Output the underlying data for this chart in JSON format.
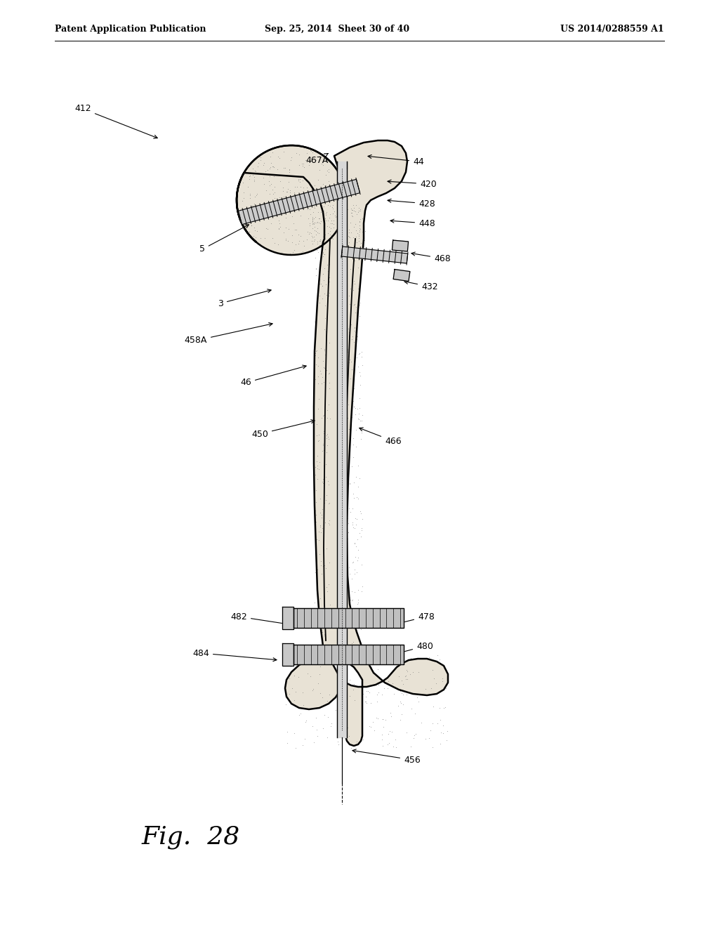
{
  "header_left": "Patent Application Publication",
  "header_center": "Sep. 25, 2014  Sheet 30 of 40",
  "header_right": "US 2014/0288559 A1",
  "fig_label": "Fig. 28",
  "background": "#ffffff",
  "lc": "#000000",
  "bone_fill": "#e8e2d5",
  "bone_stipple": "#777777",
  "nail_fill": "#d0d0d0",
  "bolt_fill": "#b8b8b8",
  "annotations": [
    [
      "412",
      130,
      155,
      228,
      198,
      "right"
    ],
    [
      "5",
      292,
      355,
      358,
      318,
      "right"
    ],
    [
      "3",
      318,
      432,
      390,
      412,
      "right"
    ],
    [
      "458A",
      295,
      485,
      392,
      460,
      "right"
    ],
    [
      "46",
      358,
      545,
      440,
      520,
      "right"
    ],
    [
      "467A",
      435,
      228,
      468,
      218,
      "left"
    ],
    [
      "44",
      588,
      230,
      520,
      222,
      "left"
    ],
    [
      "420",
      598,
      262,
      548,
      258,
      "left"
    ],
    [
      "428",
      596,
      290,
      548,
      285,
      "left"
    ],
    [
      "448",
      596,
      318,
      552,
      314,
      "left"
    ],
    [
      "468",
      618,
      368,
      582,
      360,
      "left"
    ],
    [
      "432",
      600,
      408,
      572,
      400,
      "left"
    ],
    [
      "450",
      382,
      618,
      452,
      598,
      "right"
    ],
    [
      "466",
      548,
      628,
      508,
      608,
      "left"
    ],
    [
      "482",
      352,
      878,
      418,
      890,
      "right"
    ],
    [
      "478",
      595,
      878,
      558,
      890,
      "left"
    ],
    [
      "480",
      593,
      920,
      560,
      932,
      "left"
    ],
    [
      "484",
      298,
      930,
      398,
      940,
      "right"
    ],
    [
      "456",
      575,
      1082,
      498,
      1068,
      "left"
    ]
  ]
}
